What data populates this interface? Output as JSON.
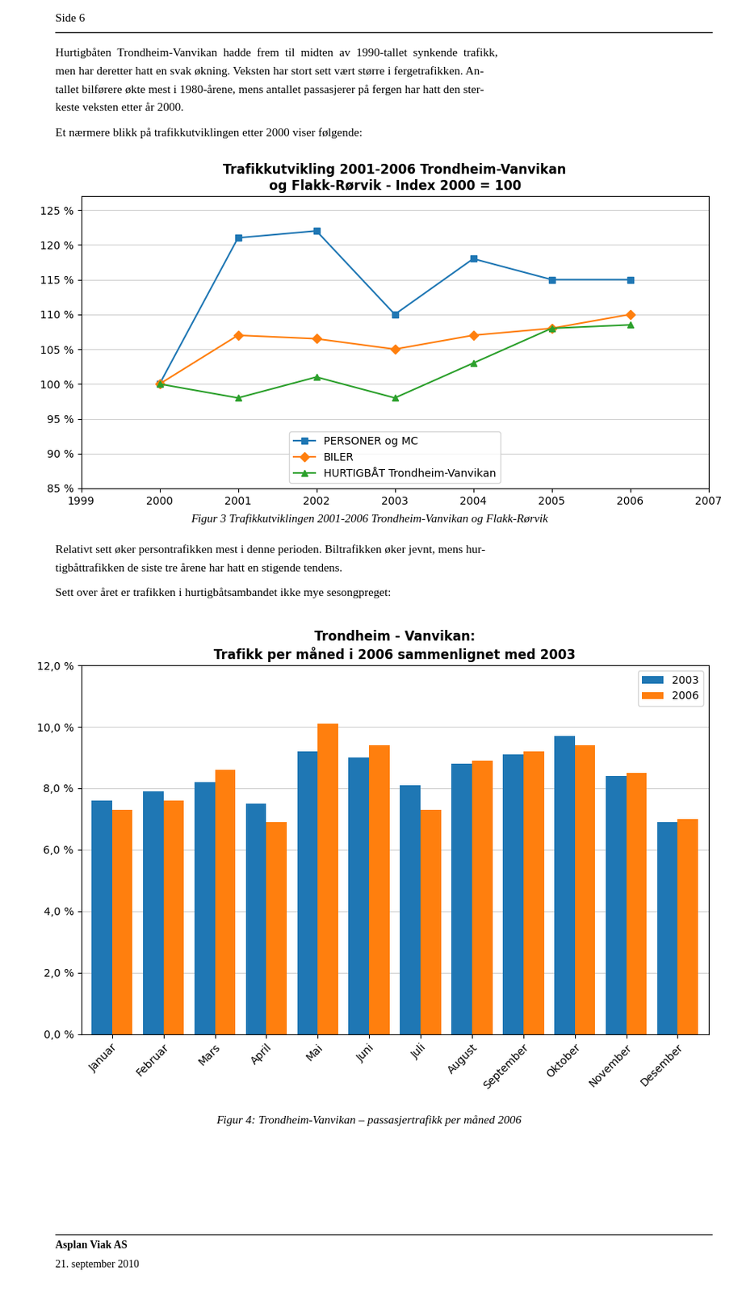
{
  "chart_data": [
    {
      "type": "line",
      "title": "Trafikkutvikling 2001-2006 Trondheim-Vanvikan\nog Flakk-Rørvik - Index 2000 = 100",
      "annotations": [
        "Side 6",
        "Hurtigbåten  Trondheim-Vanvikan  hadde  frem  til  midten  av  1990-tallet  synkende  trafikk,",
        "men har deretter hatt en svak økning. Veksten har stort sett vært større i fergetrafikken. An-",
        "tallet bilførere økte mest i 1980-årene, mens antallet passasjerer på fergen har hatt den ster-",
        "keste veksten etter år 2000.",
        "Et nærmere blikk på trafikkutviklingen etter 2000 viser følgende:",
        "Figur 3 Trafikkutviklingen 2001-2006 Trondheim-Vanvikan og Flakk-Rørvik"
      ],
      "x": [
        2000,
        2001,
        2002,
        2003,
        2004,
        2005,
        2006
      ],
      "series": [
        {
          "name": "PERSONER og MC",
          "values": [
            100,
            121,
            122,
            110,
            118,
            115,
            115
          ],
          "marker": "square"
        },
        {
          "name": "BILER",
          "values": [
            100,
            107,
            106.5,
            105,
            107,
            108,
            110
          ],
          "marker": "diamond"
        },
        {
          "name": "HURTIGBÅT Trondheim-Vanvikan",
          "values": [
            100,
            98,
            101,
            98,
            103,
            108,
            108.5
          ],
          "marker": "triangle"
        }
      ],
      "xlim": [
        1999,
        2007
      ],
      "xticks": [
        1999,
        2000,
        2001,
        2002,
        2003,
        2004,
        2005,
        2006,
        2007
      ],
      "ylim": [
        85,
        127
      ],
      "yticks": [
        {
          "value": 85,
          "label": "85 %"
        },
        {
          "value": 90,
          "label": "90 %"
        },
        {
          "value": 95,
          "label": "95 %"
        },
        {
          "value": 100,
          "label": "100 %"
        },
        {
          "value": 105,
          "label": "105 %"
        },
        {
          "value": 110,
          "label": "110 %"
        },
        {
          "value": 115,
          "label": "115 %"
        },
        {
          "value": 120,
          "label": "120 %"
        },
        {
          "value": 125,
          "label": "125 %"
        }
      ],
      "grid": "y",
      "legend": "lower center"
    },
    {
      "type": "bar",
      "title": "Trondheim - Vanvikan:\nTrafikk per måned i 2006 sammenlignet med 2003",
      "annotations": [
        "Relativt sett øker persontrafikken mest i denne perioden. Biltrafikken øker jevnt, mens hur-",
        "tigbåttrafikken de siste tre årene har hatt en stigende tendens.",
        "Sett over året er trafikken i hurtigbåtsambandet ikke mye sesongpreget:",
        "Figur 4: Trondheim-Vanvikan – passasjertrafikk per måned 2006",
        "Asplan Viak AS",
        "21. september 2010"
      ],
      "categories": [
        "Januar",
        "Februar",
        "Mars",
        "April",
        "Mai",
        "Juni",
        "Juli",
        "August",
        "September",
        "Oktober",
        "November",
        "Desember"
      ],
      "series": [
        {
          "name": "2003",
          "values": [
            7.6,
            7.9,
            8.2,
            7.5,
            9.2,
            9.0,
            8.1,
            8.8,
            9.1,
            9.7,
            8.4,
            6.9
          ]
        },
        {
          "name": "2006",
          "values": [
            7.3,
            7.6,
            8.6,
            6.9,
            10.1,
            9.4,
            7.3,
            8.9,
            9.2,
            9.4,
            8.5,
            7.0
          ]
        }
      ],
      "ylim": [
        0,
        12
      ],
      "yticks": [
        {
          "value": 0,
          "label": "0,0 %"
        },
        {
          "value": 2,
          "label": "2,0 %"
        },
        {
          "value": 4,
          "label": "4,0 %"
        },
        {
          "value": 6,
          "label": "6,0 %"
        },
        {
          "value": 8,
          "label": "8,0 %"
        },
        {
          "value": 10,
          "label": "10,0 %"
        },
        {
          "value": 12,
          "label": "12,0 %"
        }
      ],
      "grid": "y",
      "legend": "upper right"
    }
  ]
}
